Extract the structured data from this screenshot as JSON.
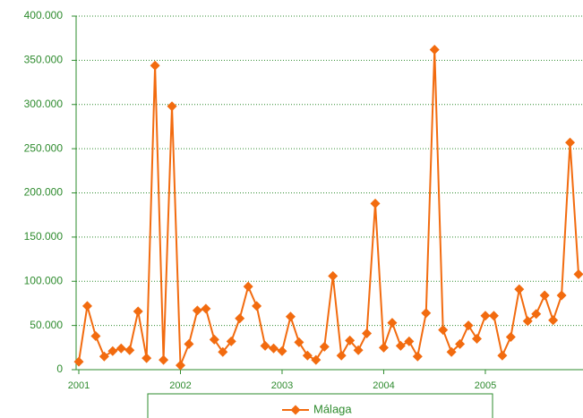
{
  "chart_data": {
    "type": "line",
    "categories": [
      "2001",
      null,
      null,
      null,
      null,
      null,
      null,
      null,
      null,
      null,
      null,
      null,
      "2002",
      null,
      null,
      null,
      null,
      null,
      null,
      null,
      null,
      null,
      null,
      null,
      "2003",
      null,
      null,
      null,
      null,
      null,
      null,
      null,
      null,
      null,
      null,
      null,
      "2004",
      null,
      null,
      null,
      null,
      null,
      null,
      null,
      null,
      null,
      null,
      null,
      "2005",
      null,
      null,
      null,
      null,
      null,
      null,
      null,
      null,
      null,
      null,
      null
    ],
    "series": [
      {
        "name": "Málaga",
        "color": "#f26b0f",
        "values": [
          9000,
          72000,
          38000,
          15000,
          21000,
          24000,
          22000,
          66000,
          13000,
          344000,
          11000,
          298000,
          5000,
          29000,
          67000,
          69000,
          34000,
          20000,
          32000,
          58000,
          94000,
          72000,
          27000,
          24000,
          21000,
          60000,
          31000,
          16000,
          11000,
          26000,
          106000,
          16000,
          33000,
          22000,
          41000,
          188000,
          25000,
          53000,
          27000,
          32000,
          15000,
          64000,
          362000,
          45000,
          20000,
          29000,
          50000,
          35000,
          61000,
          61000,
          16000,
          37000,
          91000,
          55000,
          63000,
          84000,
          56000,
          84000,
          257000,
          108000
        ]
      }
    ],
    "ylim": [
      0,
      400000
    ],
    "yticks": [
      0,
      {
        "value": 50000,
        "label": "50.000"
      },
      {
        "value": 100000,
        "label": "100.000"
      },
      {
        "value": 150000,
        "label": "150.000"
      },
      {
        "value": 200000,
        "label": "200.000"
      },
      {
        "value": 250000,
        "label": "250.000"
      },
      {
        "value": 300000,
        "label": "300.000"
      },
      {
        "value": 350000,
        "label": "350.000"
      },
      {
        "value": 400000,
        "label": "400.000"
      }
    ],
    "grid": true,
    "legend": "bottom"
  }
}
